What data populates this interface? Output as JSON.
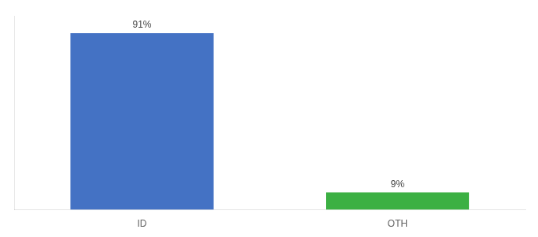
{
  "chart_data": {
    "type": "bar",
    "categories": [
      "ID",
      "OTH"
    ],
    "values": [
      91,
      9
    ],
    "colors": [
      "#4472c4",
      "#3cb043"
    ],
    "value_labels": [
      "91%",
      "9%"
    ],
    "data_labels": true,
    "ylim": [
      0,
      100
    ],
    "grid": false,
    "tick_labels": "x"
  }
}
